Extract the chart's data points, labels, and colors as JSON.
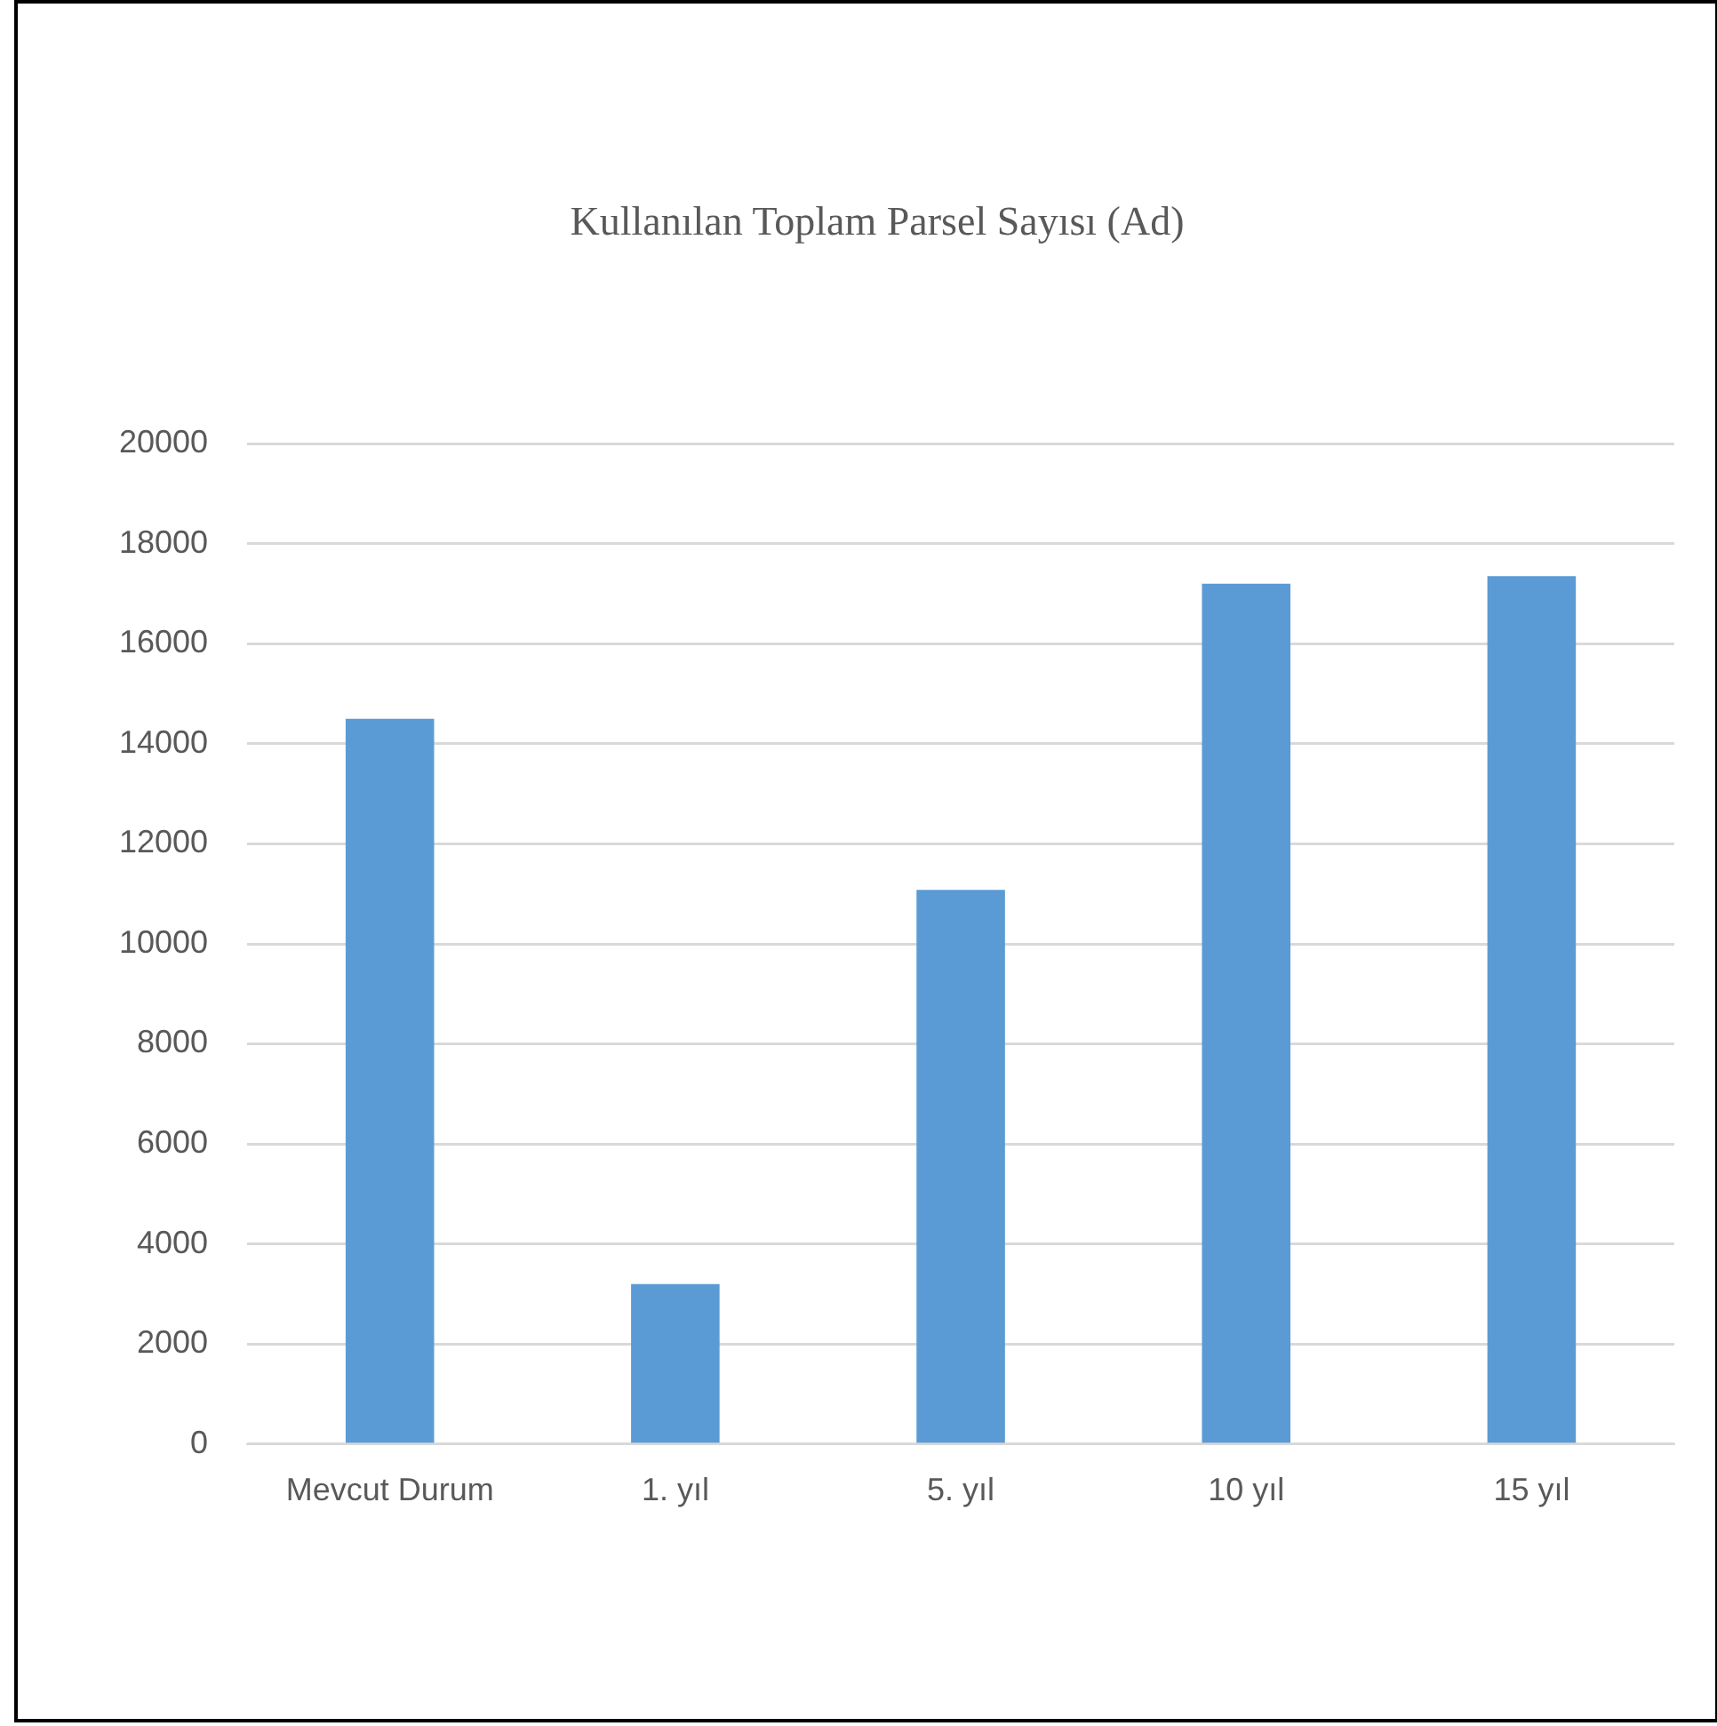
{
  "chart_data": {
    "type": "bar",
    "title": "Kullanılan Toplam Parsel Sayısı (Ad)",
    "categories": [
      "Mevcut Durum",
      "1. yıl",
      "5. yıl",
      "10 yıl",
      "15 yıl"
    ],
    "values": [
      14500,
      3200,
      11080,
      17200,
      17350
    ],
    "color": "#5b9bd5",
    "ylim": [
      0,
      20000
    ],
    "yticks": [
      0,
      2000,
      4000,
      6000,
      8000,
      10000,
      12000,
      14000,
      16000,
      18000,
      20000
    ],
    "grid": "y",
    "legend": false
  }
}
